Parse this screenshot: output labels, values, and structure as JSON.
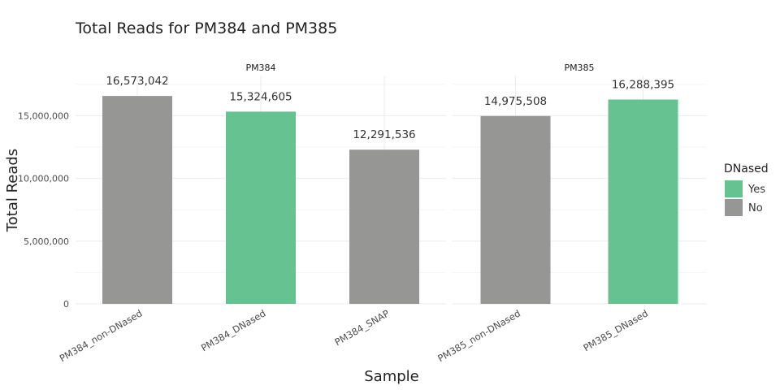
{
  "chart_data": {
    "type": "bar",
    "title": "Total Reads for PM384 and PM385",
    "xlabel": "Sample",
    "ylabel": "Total Reads",
    "ylim": [
      0,
      18200000
    ],
    "y_ticks": [
      0,
      5000000,
      10000000,
      15000000
    ],
    "y_tick_labels": [
      "0",
      "5,000,000",
      "10,000,000",
      "15,000,000"
    ],
    "grid": true,
    "legend": {
      "title": "DNased",
      "placement": "right",
      "entries": [
        {
          "label": "Yes",
          "color": "#66c391"
        },
        {
          "label": "No",
          "color": "#969694"
        }
      ]
    },
    "facets": [
      {
        "name": "PM384",
        "bars": [
          {
            "sample": "PM384_non-DNased",
            "value": 16573042,
            "label": "16,573,042",
            "dnased": "No"
          },
          {
            "sample": "PM384_DNased",
            "value": 15324605,
            "label": "15,324,605",
            "dnased": "Yes"
          },
          {
            "sample": "PM384_SNAP",
            "value": 12291536,
            "label": "12,291,536",
            "dnased": "No"
          }
        ]
      },
      {
        "name": "PM385",
        "bars": [
          {
            "sample": "PM385_non-DNased",
            "value": 14975508,
            "label": "14,975,508",
            "dnased": "No"
          },
          {
            "sample": "PM385_DNased",
            "value": 16288395,
            "label": "16,288,395",
            "dnased": "Yes"
          }
        ]
      }
    ]
  }
}
